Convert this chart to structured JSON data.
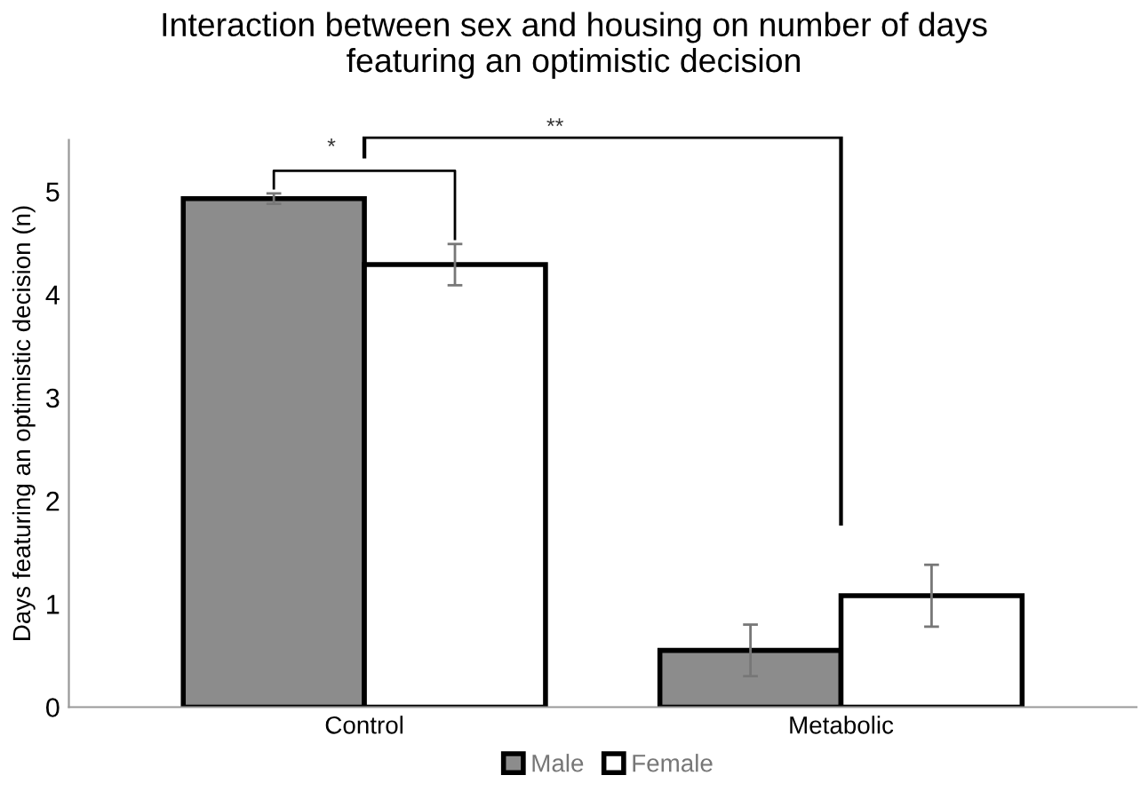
{
  "chart_data": {
    "type": "bar",
    "title": "Interaction between sex and housing on number of days\nfeaturing an optimistic decision",
    "ylabel": "Days featuring an optimistic decision (n)",
    "categories": [
      "Control",
      "Metabolic"
    ],
    "series": [
      {
        "name": "Male",
        "color": "#8c8c8c",
        "values": [
          4.93,
          0.55
        ],
        "errors": [
          0.05,
          0.25
        ]
      },
      {
        "name": "Female",
        "color": "#ffffff",
        "values": [
          4.29,
          1.08
        ],
        "errors": [
          0.2,
          0.3
        ]
      }
    ],
    "ylim": [
      0,
      5.5
    ],
    "yticks": [
      0,
      1,
      2,
      3,
      4,
      5
    ],
    "grid": false,
    "legend": "bottom",
    "annotations": [
      "*",
      "**"
    ]
  }
}
